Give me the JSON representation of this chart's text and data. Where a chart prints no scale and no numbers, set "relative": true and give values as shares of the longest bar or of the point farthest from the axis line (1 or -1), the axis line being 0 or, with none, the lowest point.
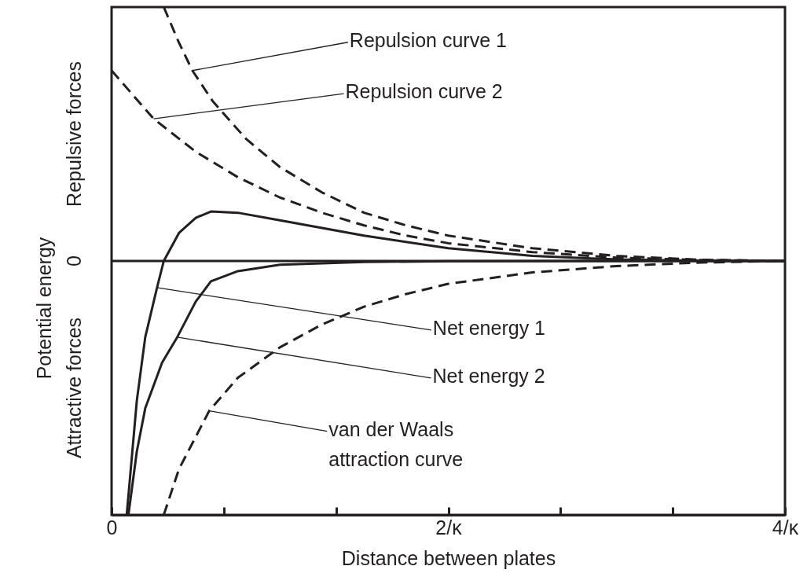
{
  "chart_data": {
    "type": "line",
    "relative": true,
    "xlabel": "Distance between plates",
    "ylabel": "Potential energy",
    "xlim": [
      0,
      4
    ],
    "xticks": [
      0,
      {
        "value": 0.667,
        "label": null
      },
      {
        "value": 1.333,
        "label": null
      },
      {
        "value": 2,
        "label": "2/κ"
      },
      {
        "value": 2.667,
        "label": null
      },
      {
        "value": 3.333,
        "label": null
      },
      {
        "value": 4,
        "label": "4/κ"
      }
    ],
    "grid": false,
    "marker": "none",
    "annotations": [
      "Repulsive forces",
      "0",
      "Attractive forces",
      {
        "text": "Repulsion curve 1",
        "x": 0.48,
        "y": 0.75
      },
      {
        "text": "Repulsion curve 2",
        "x": 0.25,
        "y": 0.56
      },
      {
        "text": "Net energy 1",
        "x": 0.27,
        "y": -0.105
      },
      {
        "text": "Net energy 2",
        "x": 0.39,
        "y": -0.3
      },
      {
        "text": "van der Waals attraction curve",
        "x": 0.58,
        "y": -0.59
      }
    ],
    "series": [
      {
        "color": "#231f20",
        "line_style": "dashed",
        "x": [
          0.31,
          0.4,
          0.48,
          0.6,
          0.8,
          1.0,
          1.25,
          1.5,
          1.75,
          2,
          2.5,
          3,
          3.5,
          4
        ],
        "values": [
          1,
          0.86,
          0.75,
          0.63,
          0.48,
          0.37,
          0.27,
          0.19,
          0.14,
          0.1,
          0.05,
          0.02,
          0.005,
          0
        ]
      },
      {
        "color": "#231f20",
        "line_style": "dashed",
        "x": [
          0,
          0.25,
          0.5,
          0.75,
          1,
          1.25,
          1.5,
          1.75,
          2,
          2.5,
          3,
          3.5,
          4
        ],
        "values": [
          0.75,
          0.56,
          0.43,
          0.33,
          0.25,
          0.19,
          0.14,
          0.1,
          0.07,
          0.035,
          0.013,
          0.004,
          0
        ]
      },
      {
        "color": "#231f20",
        "line_style": "solid",
        "x": [
          0.09,
          0.15,
          0.2,
          0.27,
          0.31,
          0.4,
          0.5,
          0.59,
          0.75,
          1,
          1.5,
          2,
          2.5,
          3,
          3.5,
          4
        ],
        "values": [
          -1,
          -0.55,
          -0.3,
          -0.105,
          0,
          0.11,
          0.17,
          0.195,
          0.19,
          0.16,
          0.1,
          0.05,
          0.02,
          0.006,
          0.001,
          0
        ]
      },
      {
        "color": "#231f20",
        "line_style": "solid",
        "x": [
          0.1,
          0.15,
          0.2,
          0.3,
          0.39,
          0.5,
          0.59,
          0.75,
          1,
          1.5,
          2,
          3,
          4
        ],
        "values": [
          -1,
          -0.75,
          -0.58,
          -0.4,
          -0.3,
          -0.16,
          -0.08,
          -0.04,
          -0.015,
          -0.004,
          -0.001,
          0,
          0
        ]
      },
      {
        "color": "#231f20",
        "line_style": "dashed",
        "x": [
          0.31,
          0.4,
          0.58,
          0.75,
          1,
          1.25,
          1.5,
          1.75,
          2,
          2.5,
          3,
          3.5,
          4
        ],
        "values": [
          -1,
          -0.82,
          -0.59,
          -0.46,
          -0.34,
          -0.25,
          -0.18,
          -0.13,
          -0.09,
          -0.045,
          -0.02,
          -0.006,
          0
        ]
      }
    ]
  }
}
